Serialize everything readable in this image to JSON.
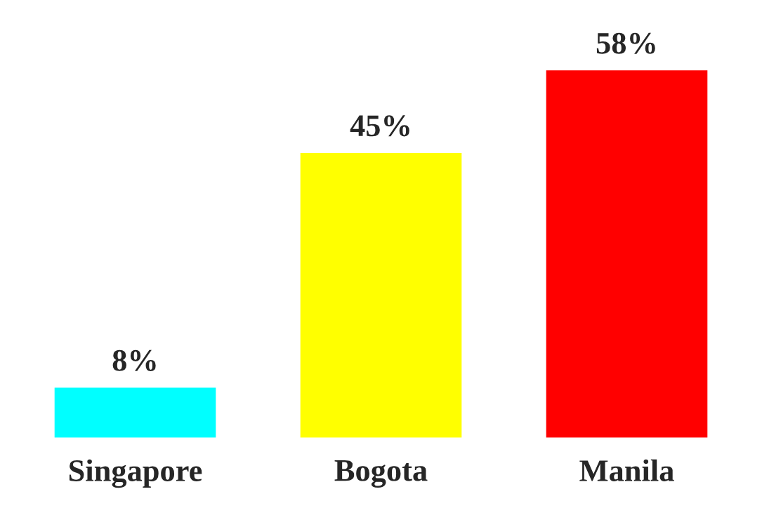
{
  "chart_data": {
    "type": "bar",
    "categories": [
      "Singapore",
      "Bogota",
      "Manila"
    ],
    "values": [
      8,
      45,
      58
    ],
    "colors": [
      "#00ffff",
      "#ffff00",
      "#ff0000"
    ],
    "value_labels": [
      "8%",
      "45%",
      "58%"
    ],
    "grid": false,
    "legend": false
  }
}
